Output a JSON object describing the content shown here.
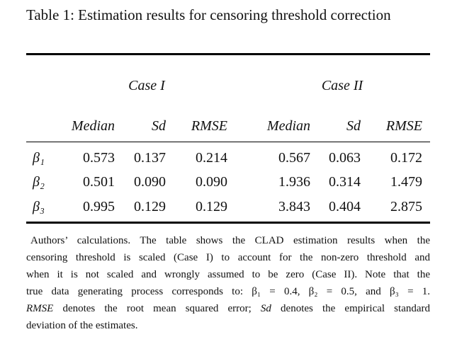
{
  "caption": "Table 1: Estimation results for censoring threshold correction",
  "table": {
    "groups": [
      "Case I",
      "Case II"
    ],
    "columns": [
      "Median",
      "Sd",
      "RMSE",
      "Median",
      "Sd",
      "RMSE"
    ],
    "rows": [
      {
        "label": "β₁",
        "cells": [
          "0.573",
          "0.137",
          "0.214",
          "0.567",
          "0.063",
          "0.172"
        ]
      },
      {
        "label": "β₂",
        "cells": [
          "0.501",
          "0.090",
          "0.090",
          "1.936",
          "0.314",
          "1.479"
        ]
      },
      {
        "label": "β₃",
        "cells": [
          "0.995",
          "0.129",
          "0.129",
          "3.843",
          "0.404",
          "2.875"
        ]
      }
    ]
  },
  "note": {
    "lines": [
      [
        {
          "text": "Authors’ calculations. The table shows the CLAD estimation results when the",
          "italic": false
        }
      ],
      [
        {
          "text": "censoring threshold is scaled (Case I) to account for the non-zero threshold and",
          "italic": false
        }
      ],
      [
        {
          "text": "when it is not scaled and wrongly assumed to be zero (Case II). Note that the",
          "italic": false
        }
      ],
      [
        {
          "text": "true data generating process corresponds to: β₁ = 0.4, β₂ = 0.5, and β₃ = 1.",
          "italic": false
        }
      ],
      [
        {
          "text": "RMSE",
          "italic": true
        },
        {
          "text": " denotes the root mean squared error; ",
          "italic": false
        },
        {
          "text": "Sd",
          "italic": true
        },
        {
          "text": " denotes the empirical standard",
          "italic": false
        }
      ],
      [
        {
          "text": "deviation of the estimates.",
          "italic": false
        }
      ]
    ]
  }
}
